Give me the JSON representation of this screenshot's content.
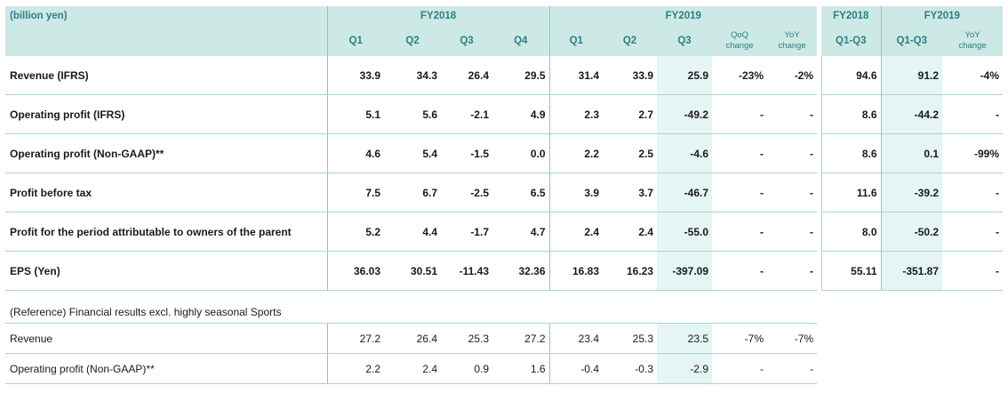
{
  "header": {
    "unit": "(billion yen)",
    "fy2018": "FY2018",
    "fy2019": "FY2019",
    "fy2018b": "FY2018",
    "fy2019b": "FY2019",
    "cols": [
      "Q1",
      "Q2",
      "Q3",
      "Q4",
      "Q1",
      "Q2",
      "Q3"
    ],
    "qoq": [
      "QoQ",
      "change"
    ],
    "yoy": [
      "YoY",
      "change"
    ],
    "cum1": "Q1-Q3",
    "cum2": "Q1-Q3",
    "yoy2": [
      "YoY",
      "change"
    ]
  },
  "rows": [
    {
      "label": "Revenue (IFRS)",
      "v": [
        "33.9",
        "34.3",
        "26.4",
        "29.5",
        "31.4",
        "33.9",
        "25.9",
        "-23%",
        "-2%",
        "94.6",
        "91.2",
        "-4%"
      ]
    },
    {
      "label": "Operating profit (IFRS)",
      "v": [
        "5.1",
        "5.6",
        "-2.1",
        "4.9",
        "2.3",
        "2.7",
        "-49.2",
        "-",
        "-",
        "8.6",
        "-44.2",
        "-"
      ]
    },
    {
      "label": "Operating profit (Non-GAAP)**",
      "v": [
        "4.6",
        "5.4",
        "-1.5",
        "0.0",
        "2.2",
        "2.5",
        "-4.6",
        "-",
        "-",
        "8.6",
        "0.1",
        "-99%"
      ]
    },
    {
      "label": "Profit before tax",
      "v": [
        "7.5",
        "6.7",
        "-2.5",
        "6.5",
        "3.9",
        "3.7",
        "-46.7",
        "-",
        "-",
        "11.6",
        "-39.2",
        "-"
      ]
    },
    {
      "label": "Profit for the period attributable to owners of the parent",
      "v": [
        "5.2",
        "4.4",
        "-1.7",
        "4.7",
        "2.4",
        "2.4",
        "-55.0",
        "-",
        "-",
        "8.0",
        "-50.2",
        "-"
      ]
    },
    {
      "label": "EPS (Yen)",
      "v": [
        "36.03",
        "30.51",
        "-11.43",
        "32.36",
        "16.83",
        "16.23",
        "-397.09",
        "-",
        "-",
        "55.11",
        "-351.87",
        "-"
      ]
    }
  ],
  "reference": {
    "title": "(Reference) Financial results excl. highly seasonal Sports",
    "rows": [
      {
        "label": "Revenue",
        "v": [
          "27.2",
          "26.4",
          "25.3",
          "27.2",
          "23.4",
          "25.3",
          "23.5",
          "-7%",
          "-7%"
        ]
      },
      {
        "label": "Operating profit (Non-GAAP)**",
        "v": [
          "2.2",
          "2.4",
          "0.9",
          "1.6",
          "-0.4",
          "-0.3",
          "-2.9",
          "-",
          "-"
        ]
      }
    ]
  },
  "colors": {
    "header_bg": "#cce9e6",
    "header_text": "#2e7f84",
    "highlight": "#e5f5f3",
    "rule": "#a9d3cf"
  }
}
